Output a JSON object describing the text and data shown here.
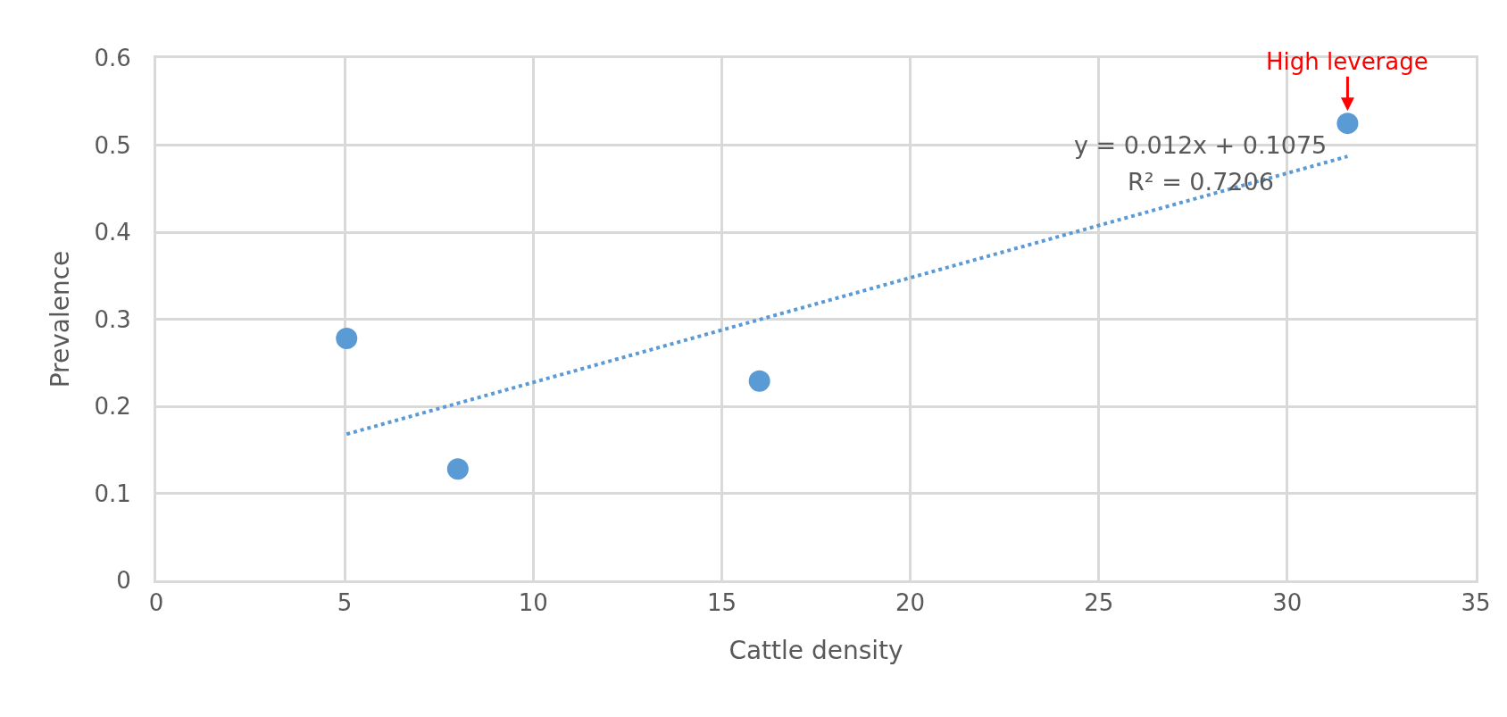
{
  "chart_data": {
    "type": "scatter",
    "xlabel": "Cattle density",
    "ylabel": "Prevalence",
    "xlim": [
      0,
      35
    ],
    "xticks": [
      0,
      5,
      10,
      15,
      20,
      25,
      30,
      35
    ],
    "ylim": [
      0,
      0.6
    ],
    "yticks": [
      0,
      0.1,
      0.2,
      0.3,
      0.4,
      0.5,
      0.6
    ],
    "grid": true,
    "series": [
      {
        "color": "#5b9bd5",
        "marker": "circle",
        "x": [
          5.05,
          8,
          16,
          31.6
        ],
        "values": [
          0.278,
          0.128,
          0.229,
          0.525
        ]
      },
      {
        "type": "line",
        "color": "#5b9bd5",
        "marker": "none",
        "line_style": "dotted",
        "x": [
          5.05,
          31.6
        ],
        "values": [
          0.168,
          0.487
        ]
      }
    ],
    "annotations": [
      {
        "text": "High leverage",
        "x": 31.6,
        "y": 0.525
      },
      "y = 0.012x + 0.1075",
      "R² = 0.7206"
    ]
  }
}
